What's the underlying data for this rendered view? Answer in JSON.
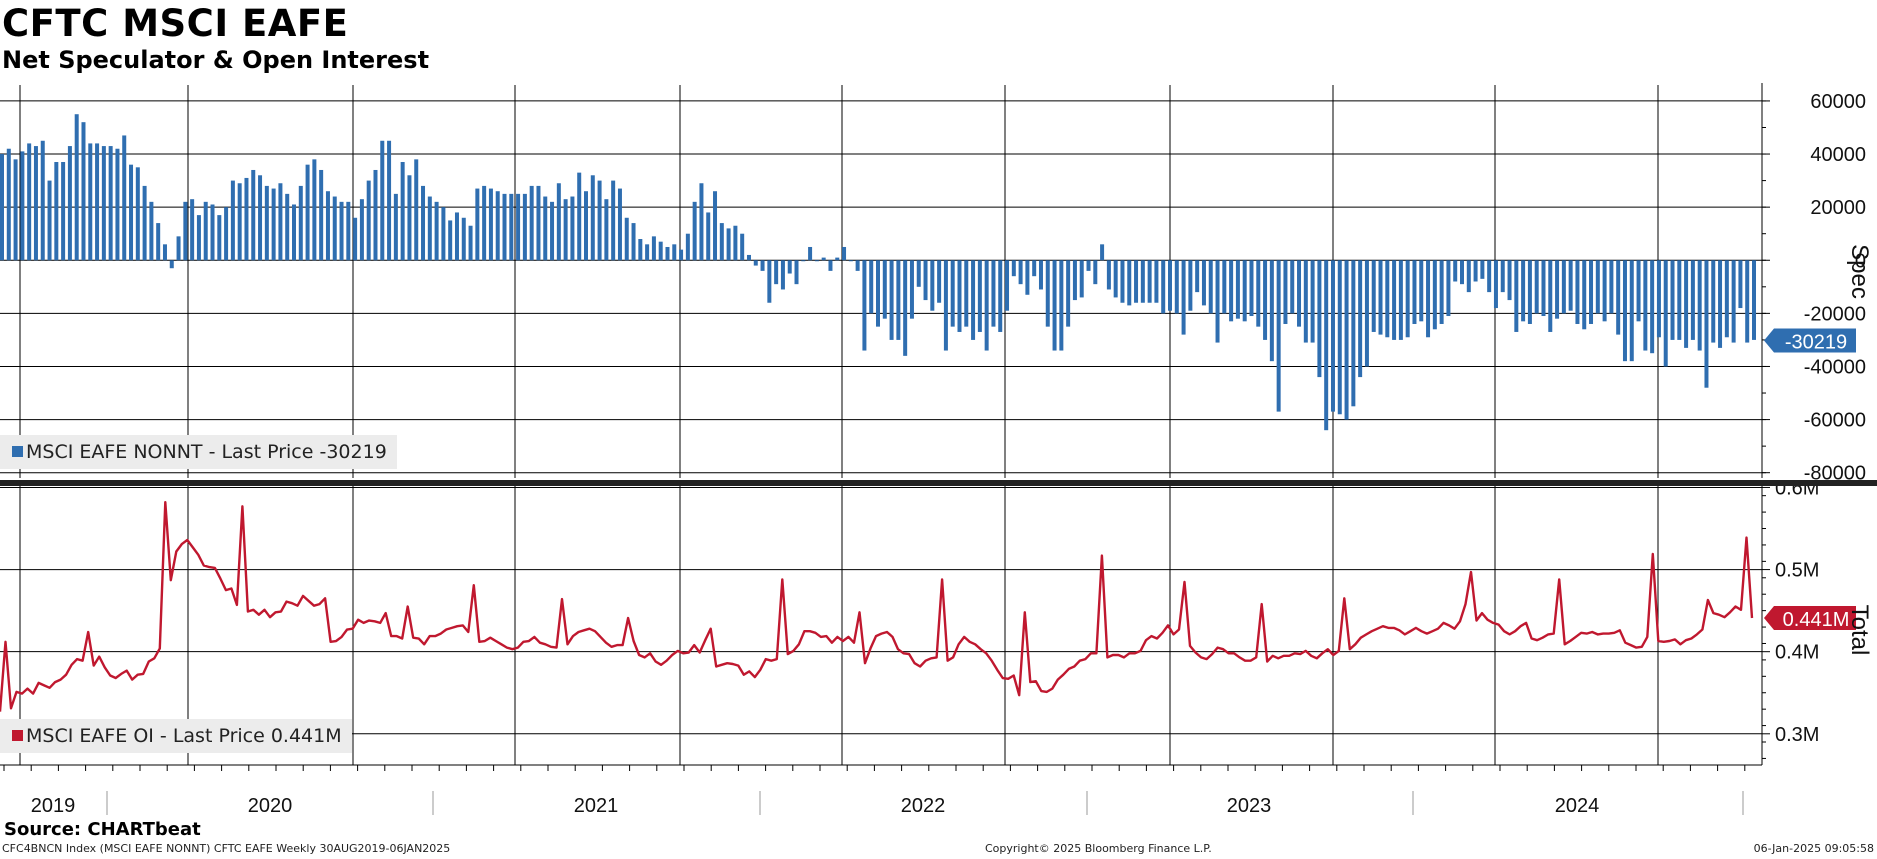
{
  "title": "CFTC MSCI EAFE",
  "subtitle": "Net Speculator & Open Interest",
  "source": "Source: CHARTbeat",
  "footer": {
    "left": "CFC4BNCN Index (MSCI EAFE NONNT) CFTC EAFE  Weekly 30AUG2019-06JAN2025",
    "middle": "Copyright© 2025 Bloomberg Finance L.P.",
    "right": "06-Jan-2025 09:05:58"
  },
  "colors": {
    "spec": "#2f6eb0",
    "oi": "#c0182f"
  },
  "chart_data": [
    {
      "type": "bar",
      "panel": "top",
      "axis_label": "Spec",
      "ylim": [
        -82000,
        66000
      ],
      "yticks": [
        60000,
        40000,
        20000,
        0,
        -20000,
        -40000,
        -60000,
        -80000
      ],
      "ytick_labels": [
        "60000",
        "40000",
        "20000",
        "0",
        "-20000",
        "-40000",
        "-60000",
        "-80000"
      ],
      "legend": "MSCI EAFE NONNT - Last Price -30219",
      "last_label": "-30219",
      "last_value": -30219,
      "grid": true,
      "values": [
        40000,
        42000,
        38000,
        41000,
        44000,
        43000,
        45000,
        30000,
        37000,
        37000,
        43000,
        55000,
        52000,
        44000,
        44000,
        43000,
        43000,
        42000,
        47000,
        36000,
        35000,
        28000,
        22000,
        14000,
        6000,
        -3000,
        9000,
        22000,
        23000,
        17000,
        22000,
        21000,
        17000,
        20000,
        30000,
        29000,
        31000,
        34000,
        32000,
        28000,
        27000,
        29000,
        25000,
        21000,
        28000,
        36000,
        38000,
        34000,
        26000,
        24000,
        22000,
        22000,
        16000,
        23000,
        30000,
        34000,
        45000,
        45000,
        25000,
        37000,
        32000,
        38000,
        28000,
        24000,
        22000,
        20000,
        15000,
        18000,
        16000,
        13000,
        27000,
        28000,
        27000,
        26000,
        25000,
        25000,
        25000,
        25000,
        28000,
        28000,
        24000,
        22000,
        29000,
        23000,
        24000,
        33000,
        26000,
        32000,
        30000,
        23000,
        30000,
        27000,
        16000,
        14000,
        8000,
        6000,
        9000,
        7000,
        5000,
        6000,
        4000,
        10000,
        22000,
        29000,
        18000,
        26000,
        14000,
        12000,
        13000,
        10000,
        2000,
        -2000,
        -4000,
        -16000,
        -9000,
        -11000,
        -5000,
        -9000,
        0,
        5000,
        0,
        1000,
        -4000,
        1000,
        5000,
        0,
        -4000,
        -34000,
        -20000,
        -25000,
        -22000,
        -30000,
        -30000,
        -36000,
        -22000,
        -10000,
        -15000,
        -19000,
        -16000,
        -34000,
        -25000,
        -27000,
        -25000,
        -30000,
        -27000,
        -34000,
        -25000,
        -27000,
        -19000,
        -6000,
        -9000,
        -13000,
        -6000,
        -11000,
        -25000,
        -34000,
        -34000,
        -25000,
        -15000,
        -14000,
        -4000,
        -9000,
        6000,
        -11000,
        -14000,
        -16000,
        -17000,
        -16000,
        -16000,
        -16000,
        -16000,
        -20000,
        -19000,
        -20000,
        -28000,
        -19000,
        -12000,
        -17000,
        -20000,
        -31000,
        -20000,
        -23000,
        -22000,
        -23000,
        -21000,
        -25000,
        -30000,
        -38000,
        -57000,
        -24000,
        -20000,
        -25000,
        -31000,
        -31000,
        -44000,
        -64000,
        -57000,
        -58000,
        -60000,
        -55000,
        -44000,
        -40000,
        -27000,
        -28000,
        -29000,
        -30000,
        -30000,
        -29000,
        -24000,
        -23000,
        -29000,
        -26000,
        -24000,
        -21000,
        -8000,
        -9000,
        -12000,
        -8000,
        -7000,
        -12000,
        -18000,
        -12000,
        -15000,
        -27000,
        -23000,
        -24000,
        -20000,
        -21000,
        -27000,
        -22000,
        -20000,
        -19000,
        -24000,
        -26000,
        -24000,
        -20000,
        -23000,
        -20000,
        -28000,
        -38000,
        -38000,
        -23000,
        -34000,
        -35000,
        -29000,
        -40000,
        -30000,
        -30000,
        -33000,
        -30000,
        -34000,
        -48000,
        -31000,
        -33000,
        -29000,
        -31000,
        -18000,
        -31000,
        -30000
      ]
    },
    {
      "type": "line",
      "panel": "bottom",
      "axis_label": "Total",
      "ylim": [
        0.262,
        0.603
      ],
      "yticks": [
        0.6,
        0.5,
        0.4,
        0.3
      ],
      "ytick_labels": [
        "0.6M",
        "0.5M",
        "0.4M",
        "0.3M"
      ],
      "legend": "MSCI EAFE OI - Last Price 0.441M",
      "last_label": "0.441M",
      "last_value": 0.441,
      "grid": true,
      "values": [
        0.327,
        0.412,
        0.331,
        0.351,
        0.349,
        0.355,
        0.349,
        0.362,
        0.359,
        0.356,
        0.363,
        0.366,
        0.372,
        0.384,
        0.391,
        0.389,
        0.424,
        0.383,
        0.394,
        0.381,
        0.371,
        0.368,
        0.373,
        0.377,
        0.366,
        0.372,
        0.373,
        0.388,
        0.392,
        0.404,
        0.582,
        0.487,
        0.522,
        0.531,
        0.536,
        0.527,
        0.518,
        0.505,
        0.503,
        0.502,
        0.489,
        0.475,
        0.477,
        0.457,
        0.577,
        0.449,
        0.451,
        0.445,
        0.451,
        0.442,
        0.448,
        0.449,
        0.461,
        0.459,
        0.456,
        0.468,
        0.462,
        0.456,
        0.458,
        0.465,
        0.412,
        0.413,
        0.418,
        0.427,
        0.428,
        0.439,
        0.435,
        0.438,
        0.437,
        0.435,
        0.447,
        0.419,
        0.419,
        0.416,
        0.455,
        0.417,
        0.416,
        0.409,
        0.419,
        0.419,
        0.422,
        0.427,
        0.429,
        0.431,
        0.432,
        0.424,
        0.481,
        0.412,
        0.413,
        0.417,
        0.413,
        0.409,
        0.405,
        0.403,
        0.405,
        0.412,
        0.413,
        0.418,
        0.411,
        0.409,
        0.406,
        0.405,
        0.464,
        0.409,
        0.419,
        0.424,
        0.426,
        0.428,
        0.425,
        0.418,
        0.411,
        0.406,
        0.408,
        0.408,
        0.441,
        0.413,
        0.396,
        0.393,
        0.398,
        0.388,
        0.384,
        0.389,
        0.396,
        0.401,
        0.398,
        0.399,
        0.408,
        0.399,
        0.414,
        0.428,
        0.382,
        0.384,
        0.386,
        0.385,
        0.383,
        0.372,
        0.376,
        0.369,
        0.378,
        0.391,
        0.389,
        0.391,
        0.488,
        0.397,
        0.401,
        0.409,
        0.425,
        0.425,
        0.423,
        0.418,
        0.419,
        0.411,
        0.418,
        0.413,
        0.418,
        0.411,
        0.448,
        0.386,
        0.404,
        0.419,
        0.422,
        0.424,
        0.418,
        0.403,
        0.398,
        0.397,
        0.386,
        0.382,
        0.389,
        0.392,
        0.393,
        0.488,
        0.389,
        0.393,
        0.409,
        0.418,
        0.412,
        0.409,
        0.403,
        0.398,
        0.389,
        0.378,
        0.368,
        0.367,
        0.371,
        0.347,
        0.448,
        0.363,
        0.364,
        0.352,
        0.351,
        0.355,
        0.366,
        0.372,
        0.379,
        0.382,
        0.389,
        0.391,
        0.398,
        0.398,
        0.517,
        0.393,
        0.396,
        0.396,
        0.393,
        0.398,
        0.398,
        0.401,
        0.414,
        0.419,
        0.416,
        0.423,
        0.432,
        0.421,
        0.427,
        0.485,
        0.407,
        0.399,
        0.393,
        0.391,
        0.397,
        0.405,
        0.403,
        0.398,
        0.398,
        0.393,
        0.389,
        0.389,
        0.393,
        0.458,
        0.388,
        0.395,
        0.392,
        0.395,
        0.395,
        0.398,
        0.397,
        0.401,
        0.395,
        0.392,
        0.398,
        0.403,
        0.396,
        0.401,
        0.465,
        0.403,
        0.409,
        0.417,
        0.421,
        0.425,
        0.428,
        0.431,
        0.429,
        0.429,
        0.426,
        0.421,
        0.425,
        0.429,
        0.425,
        0.422,
        0.425,
        0.428,
        0.435,
        0.432,
        0.428,
        0.437,
        0.458,
        0.497,
        0.438,
        0.447,
        0.439,
        0.435,
        0.433,
        0.425,
        0.421,
        0.425,
        0.431,
        0.435,
        0.416,
        0.414,
        0.417,
        0.421,
        0.422,
        0.488,
        0.409,
        0.413,
        0.418,
        0.423,
        0.422,
        0.424,
        0.421,
        0.422,
        0.422,
        0.423,
        0.426,
        0.411,
        0.408,
        0.405,
        0.406,
        0.418,
        0.519,
        0.413,
        0.412,
        0.413,
        0.415,
        0.409,
        0.414,
        0.416,
        0.421,
        0.427,
        0.463,
        0.447,
        0.445,
        0.442,
        0.448,
        0.455,
        0.451,
        0.539,
        0.441
      ]
    }
  ],
  "x_axis": {
    "year_labels": [
      "2019",
      "2020",
      "2021",
      "2022",
      "2023",
      "2024"
    ]
  }
}
